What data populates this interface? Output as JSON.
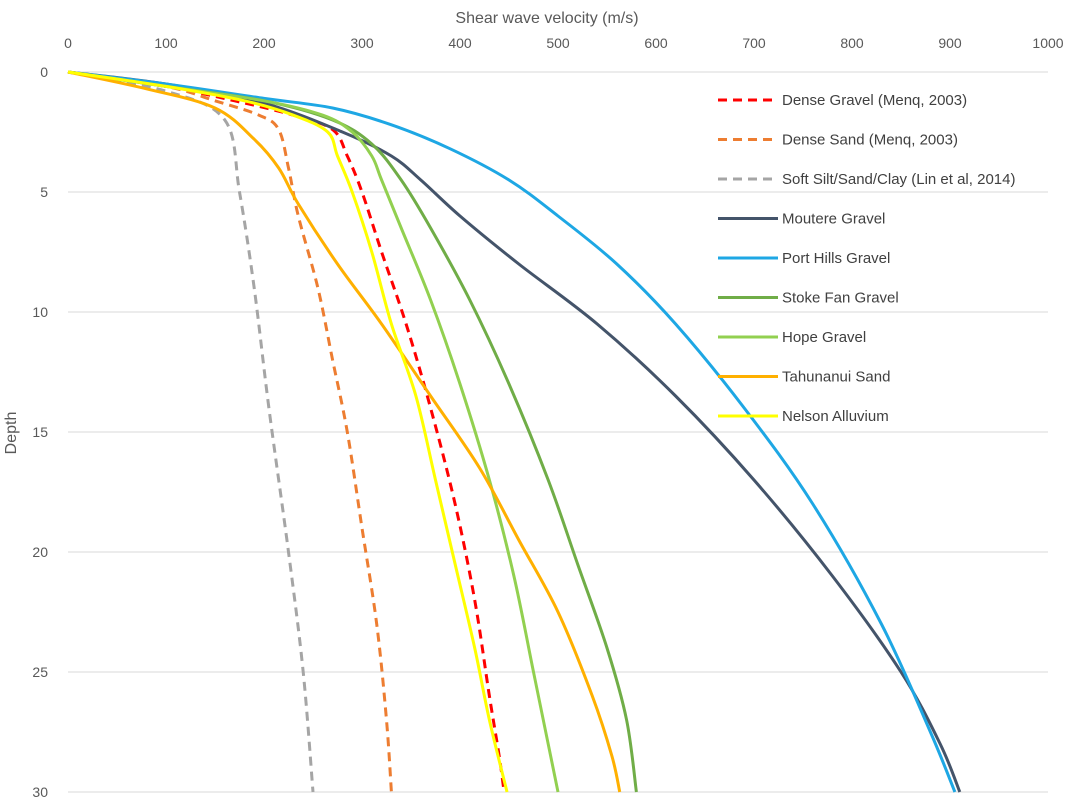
{
  "chart_data": {
    "type": "line",
    "title": "",
    "xlabel": "Shear wave velocity (m/s)",
    "ylabel": "Depth",
    "xlim": [
      0,
      1000
    ],
    "ylim": [
      0,
      30
    ],
    "y_inverted": true,
    "x_axis_position": "top",
    "grid": "horizontal",
    "legend": "top-right",
    "xticks": [
      "0",
      "100",
      "200",
      "300",
      "400",
      "500",
      "600",
      "700",
      "800",
      "900",
      "1000"
    ],
    "yticks": [
      "0",
      "5",
      "10",
      "15",
      "20",
      "25",
      "30"
    ],
    "series": [
      {
        "name": "Dense Gravel (Menq, 2003)",
        "color": "#ff0000",
        "dash": "dashed",
        "points": [
          [
            0,
            0
          ],
          [
            100,
            0.6
          ],
          [
            170,
            1.2
          ],
          [
            230,
            1.8
          ],
          [
            270,
            2.4
          ],
          [
            285,
            3.5
          ],
          [
            300,
            5
          ],
          [
            320,
            7.5
          ],
          [
            345,
            10.5
          ],
          [
            370,
            14
          ],
          [
            395,
            18
          ],
          [
            415,
            22
          ],
          [
            430,
            26
          ],
          [
            440,
            28.5
          ],
          [
            445,
            30
          ]
        ]
      },
      {
        "name": "Dense Sand (Menq, 2003)",
        "color": "#ed7d31",
        "dash": "dashed",
        "points": [
          [
            0,
            0
          ],
          [
            100,
            0.6
          ],
          [
            150,
            1.2
          ],
          [
            195,
            1.8
          ],
          [
            215,
            2.4
          ],
          [
            225,
            4
          ],
          [
            235,
            6
          ],
          [
            255,
            9
          ],
          [
            270,
            12
          ],
          [
            285,
            15
          ],
          [
            300,
            19
          ],
          [
            315,
            23
          ],
          [
            325,
            27
          ],
          [
            330,
            30
          ]
        ]
      },
      {
        "name": "Soft Silt/Sand/Clay (Lin et al, 2014)",
        "color": "#a5a5a5",
        "dash": "dashed",
        "points": [
          [
            0,
            0
          ],
          [
            100,
            0.8
          ],
          [
            160,
            2
          ],
          [
            175,
            5
          ],
          [
            190,
            9
          ],
          [
            205,
            14
          ],
          [
            225,
            20
          ],
          [
            240,
            25
          ],
          [
            250,
            30
          ]
        ]
      },
      {
        "name": "Moutere Gravel",
        "color": "#44546a",
        "dash": "solid",
        "points": [
          [
            0,
            0
          ],
          [
            100,
            0.5
          ],
          [
            200,
            1.3
          ],
          [
            280,
            2.5
          ],
          [
            330,
            3.5
          ],
          [
            360,
            4.5
          ],
          [
            400,
            6
          ],
          [
            460,
            8
          ],
          [
            540,
            10.5
          ],
          [
            620,
            13.5
          ],
          [
            700,
            17
          ],
          [
            780,
            21
          ],
          [
            850,
            25
          ],
          [
            890,
            28
          ],
          [
            910,
            30
          ]
        ]
      },
      {
        "name": "Port Hills Gravel",
        "color": "#1ea7e4",
        "dash": "solid",
        "points": [
          [
            0,
            0
          ],
          [
            100,
            0.5
          ],
          [
            200,
            1.1
          ],
          [
            270,
            1.5
          ],
          [
            330,
            2.2
          ],
          [
            390,
            3.2
          ],
          [
            450,
            4.5
          ],
          [
            500,
            6
          ],
          [
            560,
            8
          ],
          [
            620,
            10.5
          ],
          [
            690,
            14
          ],
          [
            760,
            18
          ],
          [
            830,
            23
          ],
          [
            880,
            27.5
          ],
          [
            905,
            30
          ]
        ]
      },
      {
        "name": "Stoke Fan Gravel",
        "color": "#70ad47",
        "dash": "solid",
        "points": [
          [
            0,
            0
          ],
          [
            100,
            0.6
          ],
          [
            200,
            1.2
          ],
          [
            270,
            2
          ],
          [
            310,
            3
          ],
          [
            340,
            4.5
          ],
          [
            370,
            6.5
          ],
          [
            410,
            9.5
          ],
          [
            450,
            13
          ],
          [
            490,
            17
          ],
          [
            520,
            20.5
          ],
          [
            550,
            24
          ],
          [
            570,
            27
          ],
          [
            580,
            30
          ]
        ]
      },
      {
        "name": "Hope Gravel",
        "color": "#92d050",
        "dash": "solid",
        "points": [
          [
            0,
            0
          ],
          [
            100,
            0.6
          ],
          [
            200,
            1.2
          ],
          [
            260,
            1.8
          ],
          [
            290,
            2.5
          ],
          [
            310,
            3.5
          ],
          [
            320,
            4.5
          ],
          [
            340,
            6.5
          ],
          [
            370,
            9.5
          ],
          [
            400,
            13
          ],
          [
            430,
            17
          ],
          [
            455,
            21
          ],
          [
            475,
            25
          ],
          [
            490,
            28
          ],
          [
            500,
            30
          ]
        ]
      },
      {
        "name": "Tahunanui Sand",
        "color": "#ffb000",
        "dash": "solid",
        "points": [
          [
            0,
            0
          ],
          [
            80,
            0.7
          ],
          [
            150,
            1.5
          ],
          [
            190,
            2.8
          ],
          [
            215,
            4
          ],
          [
            235,
            5.5
          ],
          [
            275,
            8
          ],
          [
            320,
            10.5
          ],
          [
            370,
            13.5
          ],
          [
            420,
            16.5
          ],
          [
            460,
            19.5
          ],
          [
            500,
            22.5
          ],
          [
            535,
            26
          ],
          [
            555,
            28.5
          ],
          [
            563,
            30
          ]
        ]
      },
      {
        "name": "Nelson Alluvium",
        "color": "#ffff00",
        "dash": "solid",
        "points": [
          [
            0,
            0
          ],
          [
            100,
            0.6
          ],
          [
            180,
            1.2
          ],
          [
            230,
            1.8
          ],
          [
            265,
            2.5
          ],
          [
            275,
            3.5
          ],
          [
            290,
            5
          ],
          [
            310,
            7.5
          ],
          [
            330,
            10.5
          ],
          [
            355,
            13.5
          ],
          [
            375,
            17
          ],
          [
            395,
            20.5
          ],
          [
            415,
            24
          ],
          [
            430,
            27
          ],
          [
            448,
            30
          ]
        ]
      }
    ]
  }
}
